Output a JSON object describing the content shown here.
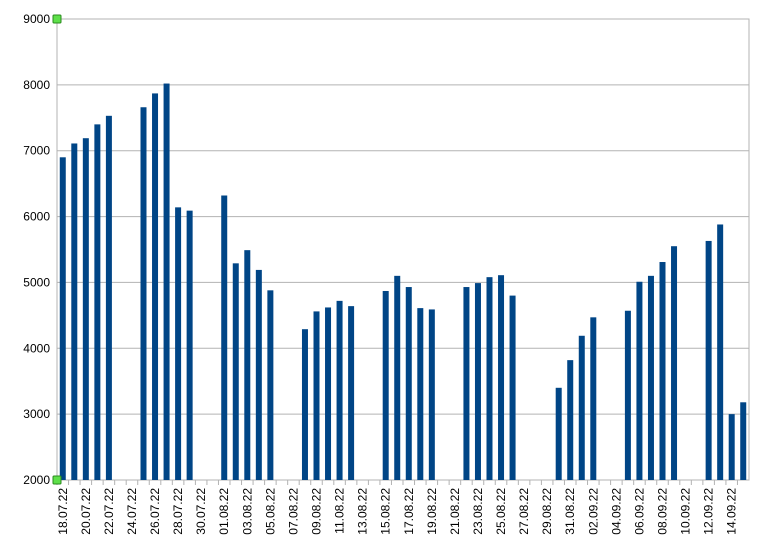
{
  "chart_data": {
    "type": "bar",
    "categories": [
      "18.07.22",
      null,
      "20.07.22",
      null,
      "22.07.22",
      null,
      "24.07.22",
      null,
      "26.07.22",
      null,
      "28.07.22",
      null,
      "30.07.22",
      null,
      "01.08.22",
      null,
      "03.08.22",
      null,
      "05.08.22",
      null,
      "07.08.22",
      null,
      "09.08.22",
      null,
      "11.08.22",
      null,
      "13.08.22",
      null,
      "15.08.22",
      null,
      "17.08.22",
      null,
      "19.08.22",
      null,
      "21.08.22",
      null,
      "23.08.22",
      null,
      "25.08.22",
      null,
      "27.08.22",
      null,
      "29.08.22",
      null,
      "31.08.22",
      null,
      "02.09.22",
      null,
      "04.09.22",
      null,
      "06.09.22",
      null,
      "08.09.22",
      null,
      "10.09.22",
      null,
      "12.09.22",
      null,
      "14.09.22",
      null
    ],
    "values": [
      6900,
      7110,
      7190,
      7400,
      7530,
      null,
      null,
      7660,
      7870,
      8020,
      6140,
      6090,
      null,
      null,
      6320,
      5290,
      5490,
      5190,
      4880,
      null,
      null,
      4290,
      4560,
      4620,
      4720,
      4640,
      null,
      null,
      4870,
      5100,
      4930,
      4610,
      4590,
      null,
      null,
      4930,
      4990,
      5080,
      5110,
      4800,
      null,
      null,
      null,
      3400,
      3820,
      4190,
      4470,
      null,
      null,
      4570,
      5010,
      5100,
      5310,
      5550,
      null,
      null,
      5630,
      5880,
      3000,
      3180
    ],
    "color": "#004586",
    "ylim": [
      2000,
      9000
    ],
    "yticks": [
      2000,
      3000,
      4000,
      5000,
      6000,
      7000,
      8000,
      9000
    ],
    "grid": true
  }
}
